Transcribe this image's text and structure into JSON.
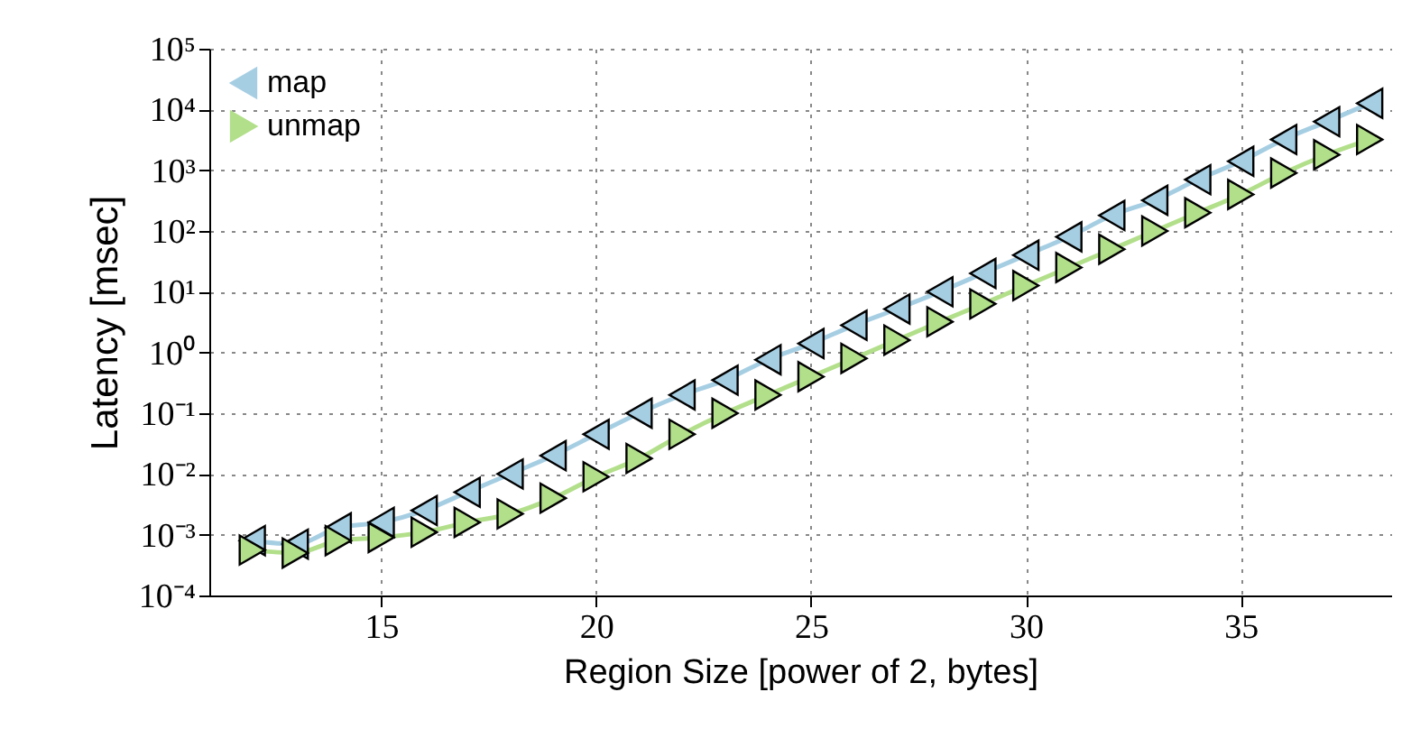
{
  "chart_data": {
    "type": "line",
    "xlabel": "Region Size [power of 2, bytes]",
    "ylabel": "Latency [msec]",
    "x": [
      12,
      13,
      14,
      15,
      16,
      17,
      18,
      19,
      20,
      21,
      22,
      23,
      24,
      25,
      26,
      27,
      28,
      29,
      30,
      31,
      32,
      33,
      34,
      35,
      36,
      37,
      38
    ],
    "series": [
      {
        "name": "map",
        "color": "#a6cee3",
        "marker": "triangle-left",
        "values": [
          0.0008,
          0.0007,
          0.0013,
          0.0016,
          0.0025,
          0.005,
          0.01,
          0.02,
          0.045,
          0.1,
          0.2,
          0.35,
          0.76,
          1.4,
          2.8,
          5.2,
          10,
          20,
          40,
          80,
          180,
          320,
          700,
          1400,
          3200,
          6300,
          12600
        ]
      },
      {
        "name": "unmap",
        "color": "#b2df8a",
        "marker": "triangle-right",
        "values": [
          0.00056,
          0.0005,
          0.0008,
          0.0009,
          0.0011,
          0.0016,
          0.0022,
          0.004,
          0.009,
          0.018,
          0.045,
          0.1,
          0.2,
          0.4,
          0.8,
          1.6,
          3.2,
          6.3,
          12.6,
          25,
          50,
          100,
          200,
          400,
          900,
          1800,
          3200
        ]
      }
    ],
    "log": "y",
    "xlim": [
      11,
      38.5
    ],
    "xticks": [
      15,
      20,
      25,
      30,
      35
    ],
    "ylim": [
      0.0001,
      100000
    ],
    "yticks": [
      {
        "value": 0.0001,
        "label": "10⁻⁴"
      },
      {
        "value": 0.001,
        "label": "10⁻³"
      },
      {
        "value": 0.01,
        "label": "10⁻²"
      },
      {
        "value": 0.1,
        "label": "10⁻¹"
      },
      {
        "value": 1,
        "label": "10⁰"
      },
      {
        "value": 10,
        "label": "10¹"
      },
      {
        "value": 100,
        "label": "10²"
      },
      {
        "value": 1000,
        "label": "10³"
      },
      {
        "value": 10000,
        "label": "10⁴"
      },
      {
        "value": 100000,
        "label": "10⁵"
      }
    ],
    "grid": true,
    "legend": "top left",
    "line_style": "solid"
  }
}
